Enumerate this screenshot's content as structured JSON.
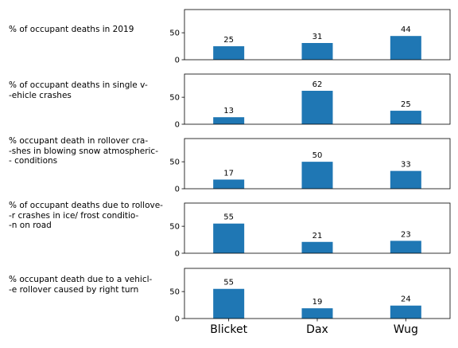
{
  "chart_data": {
    "type": "bar",
    "shared_categories": [
      "Blicket",
      "Dax",
      "Wug"
    ],
    "bar_color": "#1f77b4",
    "ylim": [
      0,
      93
    ],
    "yticks": [
      0,
      50
    ],
    "panels": [
      {
        "label": "% of occupant deaths in 2019",
        "values": [
          25,
          31,
          44
        ]
      },
      {
        "label": "% of occupant deaths in single v-\n-ehicle crashes",
        "values": [
          13,
          62,
          25
        ]
      },
      {
        "label": "% occupant death in rollover cra-\n-shes in blowing snow atmospheric-\n- conditions",
        "values": [
          17,
          50,
          33
        ]
      },
      {
        "label": "% of occupant deaths due to rollove-\n-r crashes in ice/ frost conditio-\n-n on road",
        "values": [
          55,
          21,
          23
        ]
      },
      {
        "label": "% occupant death due to a vehicl-\n-e rollover caused by right turn",
        "values": [
          55,
          19,
          24
        ]
      }
    ]
  }
}
